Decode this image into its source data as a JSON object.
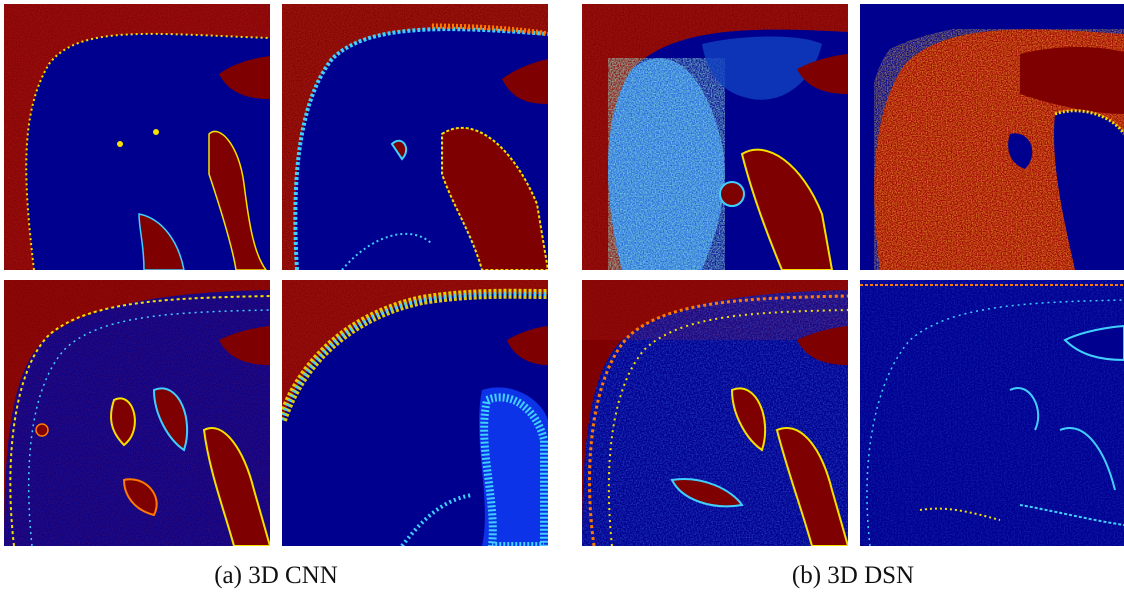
{
  "figure": {
    "colormap": "jet",
    "colors": {
      "background_dark_red": "#7f0000",
      "background_navy": "#00008f",
      "noise_red": "#b01010",
      "highlight_yellow": "#f5e000",
      "highlight_cyan": "#40d0ff",
      "highlight_blue": "#1040ff",
      "highlight_orange": "#ff7a00"
    },
    "groups": [
      {
        "caption": "(a) 3D CNN",
        "panels": [
          {
            "position": "top-left",
            "style": "cnn-outline"
          },
          {
            "position": "top-right",
            "style": "cnn-speckle"
          },
          {
            "position": "bottom-left",
            "style": "cnn-edges"
          },
          {
            "position": "bottom-right",
            "style": "cnn-band"
          }
        ]
      },
      {
        "caption": "(b) 3D DSN",
        "panels": [
          {
            "position": "top-left",
            "style": "dsn-cyan-texture"
          },
          {
            "position": "top-right",
            "style": "dsn-red-texture"
          },
          {
            "position": "bottom-left",
            "style": "dsn-edges"
          },
          {
            "position": "bottom-right",
            "style": "dsn-sparse"
          }
        ]
      }
    ]
  }
}
